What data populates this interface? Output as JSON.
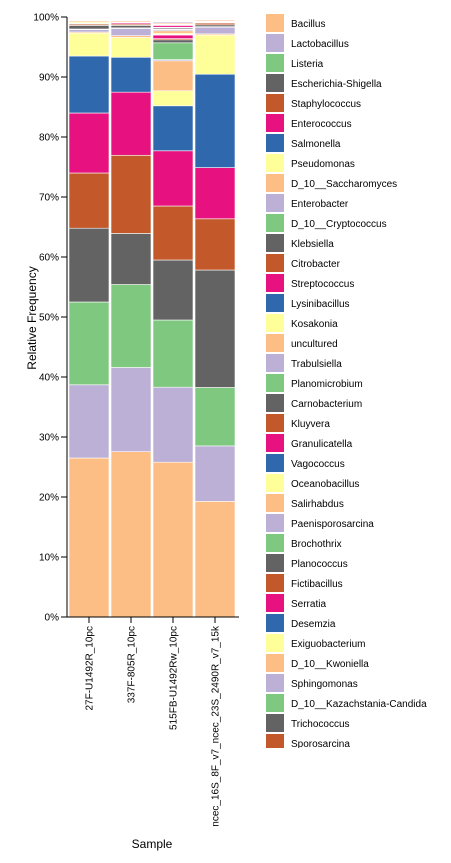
{
  "chart_data": {
    "type": "bar",
    "stacked": true,
    "title": "",
    "xlabel": "Sample",
    "ylabel": "Relative Frequency",
    "ylim": [
      0,
      1
    ],
    "yticks": [
      "0%",
      "10%",
      "20%",
      "30%",
      "40%",
      "50%",
      "60%",
      "70%",
      "80%",
      "90%",
      "100%"
    ],
    "legend_position": "right",
    "categories": [
      "27F-U1492R_10pc",
      "337F-805R_10pc",
      "515FB-U1492Rw_10pc",
      "ncec_16S_8F_v7_ncec_23S_2490R_v7_15k"
    ],
    "series": [
      {
        "name": "Bacillus",
        "color": "#fdbe85",
        "values": [
          0.265,
          0.275,
          0.258,
          0.192
        ]
      },
      {
        "name": "Lactobacillus",
        "color": "#bcb0d7",
        "values": [
          0.122,
          0.14,
          0.125,
          0.092
        ]
      },
      {
        "name": "Listeria",
        "color": "#7fc87f",
        "values": [
          0.138,
          0.138,
          0.112,
          0.097
        ]
      },
      {
        "name": "Escherichia-Shigella",
        "color": "#636363",
        "values": [
          0.123,
          0.085,
          0.1,
          0.195
        ]
      },
      {
        "name": "Staphylococcus",
        "color": "#c3582a",
        "values": [
          0.092,
          0.13,
          0.09,
          0.085
        ]
      },
      {
        "name": "Enterococcus",
        "color": "#e7127f",
        "values": [
          0.1,
          0.105,
          0.092,
          0.085
        ]
      },
      {
        "name": "Salmonella",
        "color": "#3068ad",
        "values": [
          0.095,
          0.058,
          0.075,
          0.155
        ]
      },
      {
        "name": "Pseudomonas",
        "color": "#ffff99",
        "values": [
          0.038,
          0.033,
          0.025,
          0.065
        ]
      },
      {
        "name": "D_10__Saccharomyces",
        "color": "#fdbe85",
        "values": [
          0.002,
          0.003,
          0.05,
          0.002
        ]
      },
      {
        "name": "Enterobacter",
        "color": "#bcb0d7",
        "values": [
          0.004,
          0.012,
          0.002,
          0.011
        ]
      },
      {
        "name": "D_10__Cryptococcus",
        "color": "#7fc87f",
        "values": [
          0.001,
          0.001,
          0.028,
          0.001
        ]
      },
      {
        "name": "Klebsiella",
        "color": "#636363",
        "values": [
          0.006,
          0.004,
          0.005,
          0.003
        ]
      },
      {
        "name": "Citrobacter",
        "color": "#c3582a",
        "values": [
          0.002,
          0.002,
          0.002,
          0.003
        ]
      },
      {
        "name": "Streptococcus",
        "color": "#e7127f",
        "values": [
          0.001,
          0.002,
          0.006,
          0.001
        ]
      },
      {
        "name": "Lysinibacillus",
        "color": "#3068ad",
        "values": [
          0.001,
          0.001,
          0.001,
          0.001
        ]
      },
      {
        "name": "Kosakonia",
        "color": "#ffff99",
        "values": [
          0.002,
          0.001,
          0.002,
          0.001
        ]
      },
      {
        "name": "uncultured",
        "color": "#fdbe85",
        "values": [
          0.002,
          0.002,
          0.004,
          0.002
        ]
      },
      {
        "name": "Trabulsiella",
        "color": "#bcb0d7",
        "values": [
          0.001,
          0.001,
          0.002,
          0.001
        ]
      },
      {
        "name": "Planomicrobium",
        "color": "#7fc87f",
        "values": [
          0.001,
          0.001,
          0.001,
          0.001
        ]
      },
      {
        "name": "Carnobacterium",
        "color": "#636363",
        "values": [
          0.001,
          0.001,
          0.002,
          0.001
        ]
      },
      {
        "name": "Kluyvera",
        "color": "#c3582a",
        "values": [
          0.001,
          0.001,
          0.001,
          0.001
        ]
      },
      {
        "name": "Granulicatella",
        "color": "#e7127f",
        "values": [
          0.001,
          0.001,
          0.003,
          0.001
        ]
      },
      {
        "name": "Vagococcus",
        "color": "#3068ad",
        "values": [
          0.0,
          0.0,
          0.001,
          0.0
        ]
      },
      {
        "name": "Oceanobacillus",
        "color": "#ffff99",
        "values": [
          0.0,
          0.0,
          0.001,
          0.0
        ]
      },
      {
        "name": "Salirhabdus",
        "color": "#fdbe85",
        "values": [
          0.0,
          0.0,
          0.002,
          0.0
        ]
      },
      {
        "name": "Paenisporosarcina",
        "color": "#bcb0d7",
        "values": [
          0.0,
          0.0,
          0.002,
          0.0
        ]
      },
      {
        "name": "Brochothrix",
        "color": "#7fc87f",
        "values": [
          0.0,
          0.0,
          0.001,
          0.0
        ]
      },
      {
        "name": "Planococcus",
        "color": "#636363",
        "values": [
          0.0,
          0.0,
          0.001,
          0.0
        ]
      },
      {
        "name": "Fictibacillus",
        "color": "#c3582a",
        "values": [
          0.0,
          0.0,
          0.001,
          0.0
        ]
      },
      {
        "name": "Serratia",
        "color": "#e7127f",
        "values": [
          0.001,
          0.0,
          0.001,
          0.0
        ]
      },
      {
        "name": "Desemzia",
        "color": "#3068ad",
        "values": [
          0.0,
          0.0,
          0.001,
          0.0
        ]
      },
      {
        "name": "Exiguobacterium",
        "color": "#ffff99",
        "values": [
          0.0,
          0.0,
          0.001,
          0.0
        ]
      },
      {
        "name": "D_10__Kwoniella",
        "color": "#fdbe85",
        "values": [
          0.0,
          0.0,
          0.001,
          0.0
        ]
      },
      {
        "name": "Sphingomonas",
        "color": "#bcb0d7",
        "values": [
          0.0,
          0.001,
          0.0,
          0.0
        ]
      },
      {
        "name": "D_10__Kazachstania-Candida",
        "color": "#7fc87f",
        "values": [
          0.0,
          0.0,
          0.001,
          0.0
        ]
      },
      {
        "name": "Trichococcus",
        "color": "#636363",
        "values": [
          0.0,
          0.0,
          0.0,
          0.0
        ]
      },
      {
        "name": "Sporosarcina",
        "color": "#c3582a",
        "values": [
          0.0,
          0.0,
          0.0,
          0.0
        ]
      }
    ]
  }
}
